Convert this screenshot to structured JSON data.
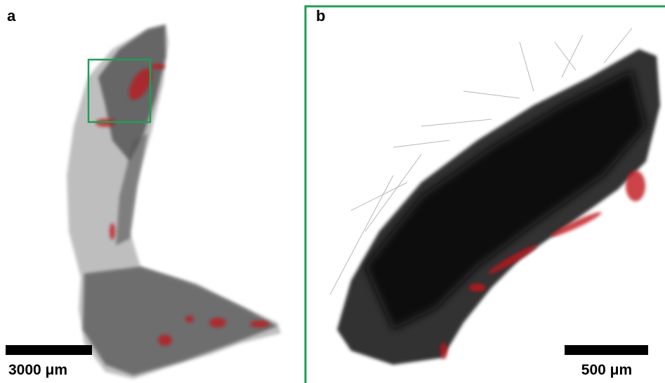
{
  "panels": [
    {
      "label": "a",
      "scale_bar": "3000 μm"
    },
    {
      "label": "b",
      "scale_bar": "500 μm"
    }
  ]
}
